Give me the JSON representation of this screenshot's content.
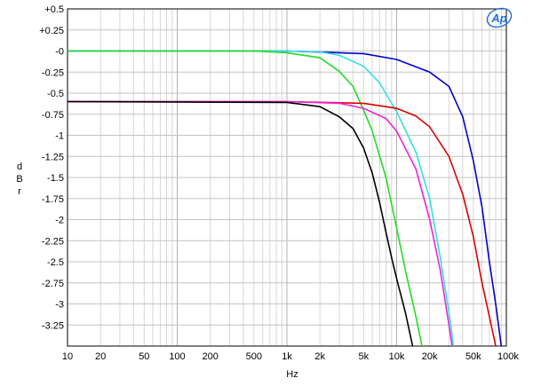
{
  "chart_data": {
    "type": "line",
    "title": "",
    "xlabel": "Hz",
    "ylabel": "dBr",
    "x_scale": "log",
    "xlim": [
      10,
      100000
    ],
    "ylim": [
      -3.5,
      0.5
    ],
    "grid": true,
    "legend": "none",
    "logo": "Ap",
    "x_tick_labels": [
      {
        "value": 10,
        "label": "10"
      },
      {
        "value": 20,
        "label": "20"
      },
      {
        "value": 50,
        "label": "50"
      },
      {
        "value": 100,
        "label": "100"
      },
      {
        "value": 200,
        "label": "200"
      },
      {
        "value": 500,
        "label": "500"
      },
      {
        "value": 1000,
        "label": "1k"
      },
      {
        "value": 2000,
        "label": "2k"
      },
      {
        "value": 5000,
        "label": "5k"
      },
      {
        "value": 10000,
        "label": "10k"
      },
      {
        "value": 20000,
        "label": "20k"
      },
      {
        "value": 50000,
        "label": "50k"
      },
      {
        "value": 100000,
        "label": "100k"
      }
    ],
    "y_tick_labels": [
      {
        "value": 0.5,
        "label": "+0.5"
      },
      {
        "value": 0.25,
        "label": "+0.25"
      },
      {
        "value": 0,
        "label": "-0"
      },
      {
        "value": -0.25,
        "label": "-0.25"
      },
      {
        "value": -0.5,
        "label": "-0.5"
      },
      {
        "value": -0.75,
        "label": "-0.75"
      },
      {
        "value": -1,
        "label": "-1"
      },
      {
        "value": -1.25,
        "label": "-1.25"
      },
      {
        "value": -1.5,
        "label": "-1.5"
      },
      {
        "value": -1.75,
        "label": "-1.75"
      },
      {
        "value": -2,
        "label": "-2"
      },
      {
        "value": -2.25,
        "label": "-2.25"
      },
      {
        "value": -2.5,
        "label": "-2.5"
      },
      {
        "value": -2.75,
        "label": "-2.75"
      },
      {
        "value": -3,
        "label": "-3"
      },
      {
        "value": -3.25,
        "label": "-3.25"
      }
    ],
    "series": [
      {
        "color": "#0000cc",
        "x": [
          10,
          1000,
          5000,
          10000,
          20000,
          30000,
          40000,
          50000,
          60000,
          70000,
          80000,
          90000
        ],
        "y": [
          0,
          0,
          -0.03,
          -0.1,
          -0.25,
          -0.42,
          -0.78,
          -1.3,
          -1.85,
          -2.5,
          -3.0,
          -3.5
        ]
      },
      {
        "color": "#33e0e8",
        "x": [
          10,
          1000,
          2000,
          3000,
          5000,
          7000,
          10000,
          15000,
          20000,
          25000,
          30000,
          33000
        ],
        "y": [
          0,
          0,
          -0.01,
          -0.05,
          -0.18,
          -0.38,
          -0.72,
          -1.2,
          -1.75,
          -2.45,
          -3.1,
          -3.5
        ]
      },
      {
        "color": "#22dd22",
        "x": [
          10,
          500,
          1000,
          2000,
          3000,
          4000,
          5000,
          6000,
          8000,
          10000,
          12000,
          15000,
          17000
        ],
        "y": [
          0,
          0,
          -0.02,
          -0.08,
          -0.24,
          -0.42,
          -0.7,
          -0.95,
          -1.5,
          -2.1,
          -2.6,
          -3.15,
          -3.5
        ]
      },
      {
        "color": "#dd0000",
        "x": [
          10,
          1000,
          5000,
          10000,
          15000,
          20000,
          30000,
          40000,
          50000,
          60000,
          70000,
          80000
        ],
        "y": [
          -0.6,
          -0.6,
          -0.62,
          -0.68,
          -0.77,
          -0.9,
          -1.25,
          -1.7,
          -2.2,
          -2.75,
          -3.15,
          -3.5
        ]
      },
      {
        "color": "#ee22dd",
        "x": [
          10,
          1000,
          3000,
          5000,
          8000,
          10000,
          15000,
          20000,
          25000,
          30000,
          32000
        ],
        "y": [
          -0.6,
          -0.6,
          -0.62,
          -0.68,
          -0.8,
          -0.95,
          -1.4,
          -2.0,
          -2.6,
          -3.25,
          -3.5
        ]
      },
      {
        "color": "#000000",
        "x": [
          10,
          1000,
          2000,
          3000,
          4000,
          5000,
          6000,
          7000,
          8000,
          9000,
          10000,
          12000,
          14000
        ],
        "y": [
          -0.6,
          -0.61,
          -0.66,
          -0.78,
          -0.92,
          -1.15,
          -1.45,
          -1.8,
          -2.15,
          -2.45,
          -2.7,
          -3.1,
          -3.5
        ]
      }
    ]
  }
}
